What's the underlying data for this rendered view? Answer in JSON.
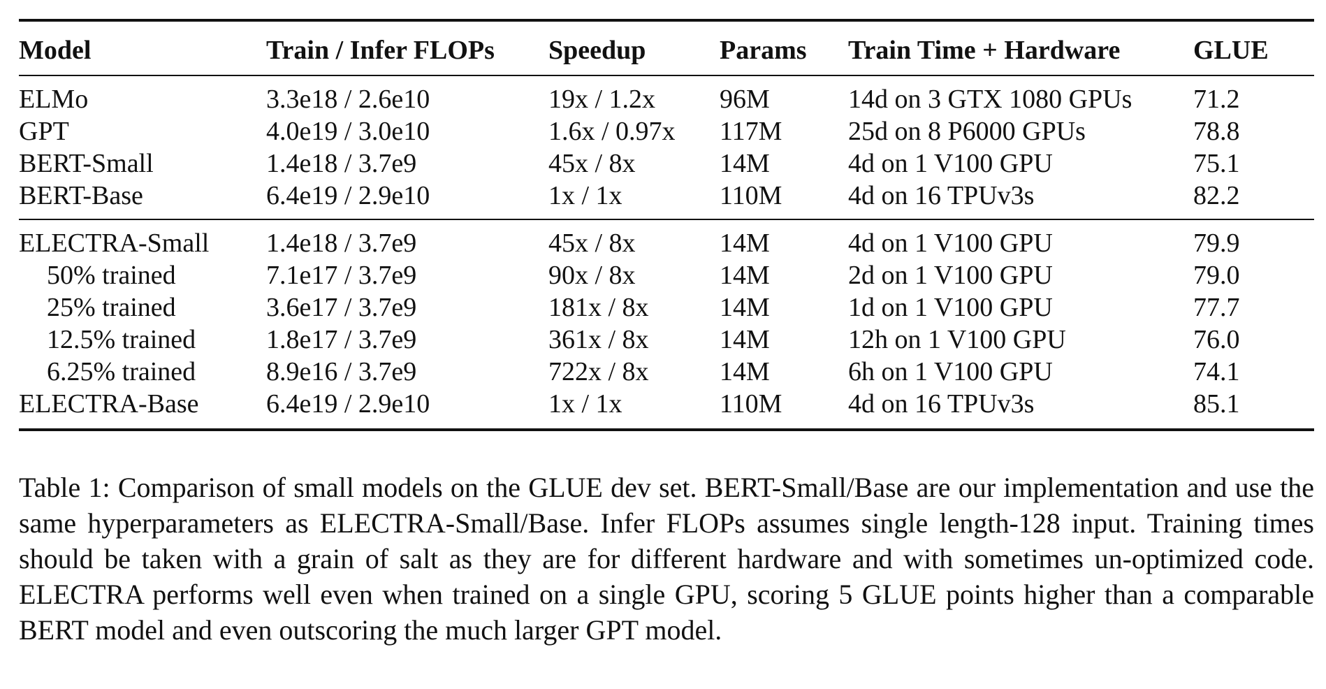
{
  "table": {
    "headers": {
      "model": "Model",
      "flops": "Train / Infer FLOPs",
      "speedup": "Speedup",
      "params": "Params",
      "train_time": "Train Time + Hardware",
      "glue": "GLUE"
    },
    "baselines": [
      {
        "model": "ELMo",
        "flops": "3.3e18 / 2.6e10",
        "speedup": "19x / 1.2x",
        "params": "96M",
        "train_time": "14d on 3 GTX 1080 GPUs",
        "glue": "71.2"
      },
      {
        "model": "GPT",
        "flops": "4.0e19 / 3.0e10",
        "speedup": "1.6x / 0.97x",
        "params": "117M",
        "train_time": "25d on 8 P6000 GPUs",
        "glue": "78.8"
      },
      {
        "model": "BERT-Small",
        "flops": "1.4e18 / 3.7e9",
        "speedup": "45x / 8x",
        "params": "14M",
        "train_time": "4d on 1 V100 GPU",
        "glue": "75.1"
      },
      {
        "model": "BERT-Base",
        "flops": "6.4e19 / 2.9e10",
        "speedup": "1x / 1x",
        "params": "110M",
        "train_time": "4d on 16 TPUv3s",
        "glue": "82.2"
      }
    ],
    "electra": [
      {
        "model": "ELECTRA-Small",
        "flops": "1.4e18 / 3.7e9",
        "speedup": "45x / 8x",
        "params": "14M",
        "train_time": "4d on 1 V100 GPU",
        "glue": "79.9"
      },
      {
        "model": "50% trained",
        "flops": "7.1e17 / 3.7e9",
        "speedup": "90x / 8x",
        "params": "14M",
        "train_time": "2d on 1 V100 GPU",
        "glue": "79.0"
      },
      {
        "model": "25% trained",
        "flops": "3.6e17 / 3.7e9",
        "speedup": "181x / 8x",
        "params": "14M",
        "train_time": "1d on 1 V100 GPU",
        "glue": "77.7"
      },
      {
        "model": "12.5% trained",
        "flops": "1.8e17 / 3.7e9",
        "speedup": "361x / 8x",
        "params": "14M",
        "train_time": "12h on 1 V100 GPU",
        "glue": "76.0"
      },
      {
        "model": "6.25% trained",
        "flops": "8.9e16 / 3.7e9",
        "speedup": "722x / 8x",
        "params": "14M",
        "train_time": "6h on 1 V100 GPU",
        "glue": "74.1"
      },
      {
        "model": "ELECTRA-Base",
        "flops": "6.4e19 / 2.9e10",
        "speedup": "1x / 1x",
        "params": "110M",
        "train_time": "4d on 16 TPUv3s",
        "glue": "85.1"
      }
    ]
  },
  "caption": "Table 1: Comparison of small models on the GLUE dev set. BERT-Small/Base are our implementation and use the same hyperparameters as ELECTRA-Small/Base. Infer FLOPs assumes single length-128 input. Training times should be taken with a grain of salt as they are for different hardware and with sometimes un-optimized code. ELECTRA performs well even when trained on a single GPU, scoring 5 GLUE points higher than a comparable BERT model and even outscoring the much larger GPT model."
}
